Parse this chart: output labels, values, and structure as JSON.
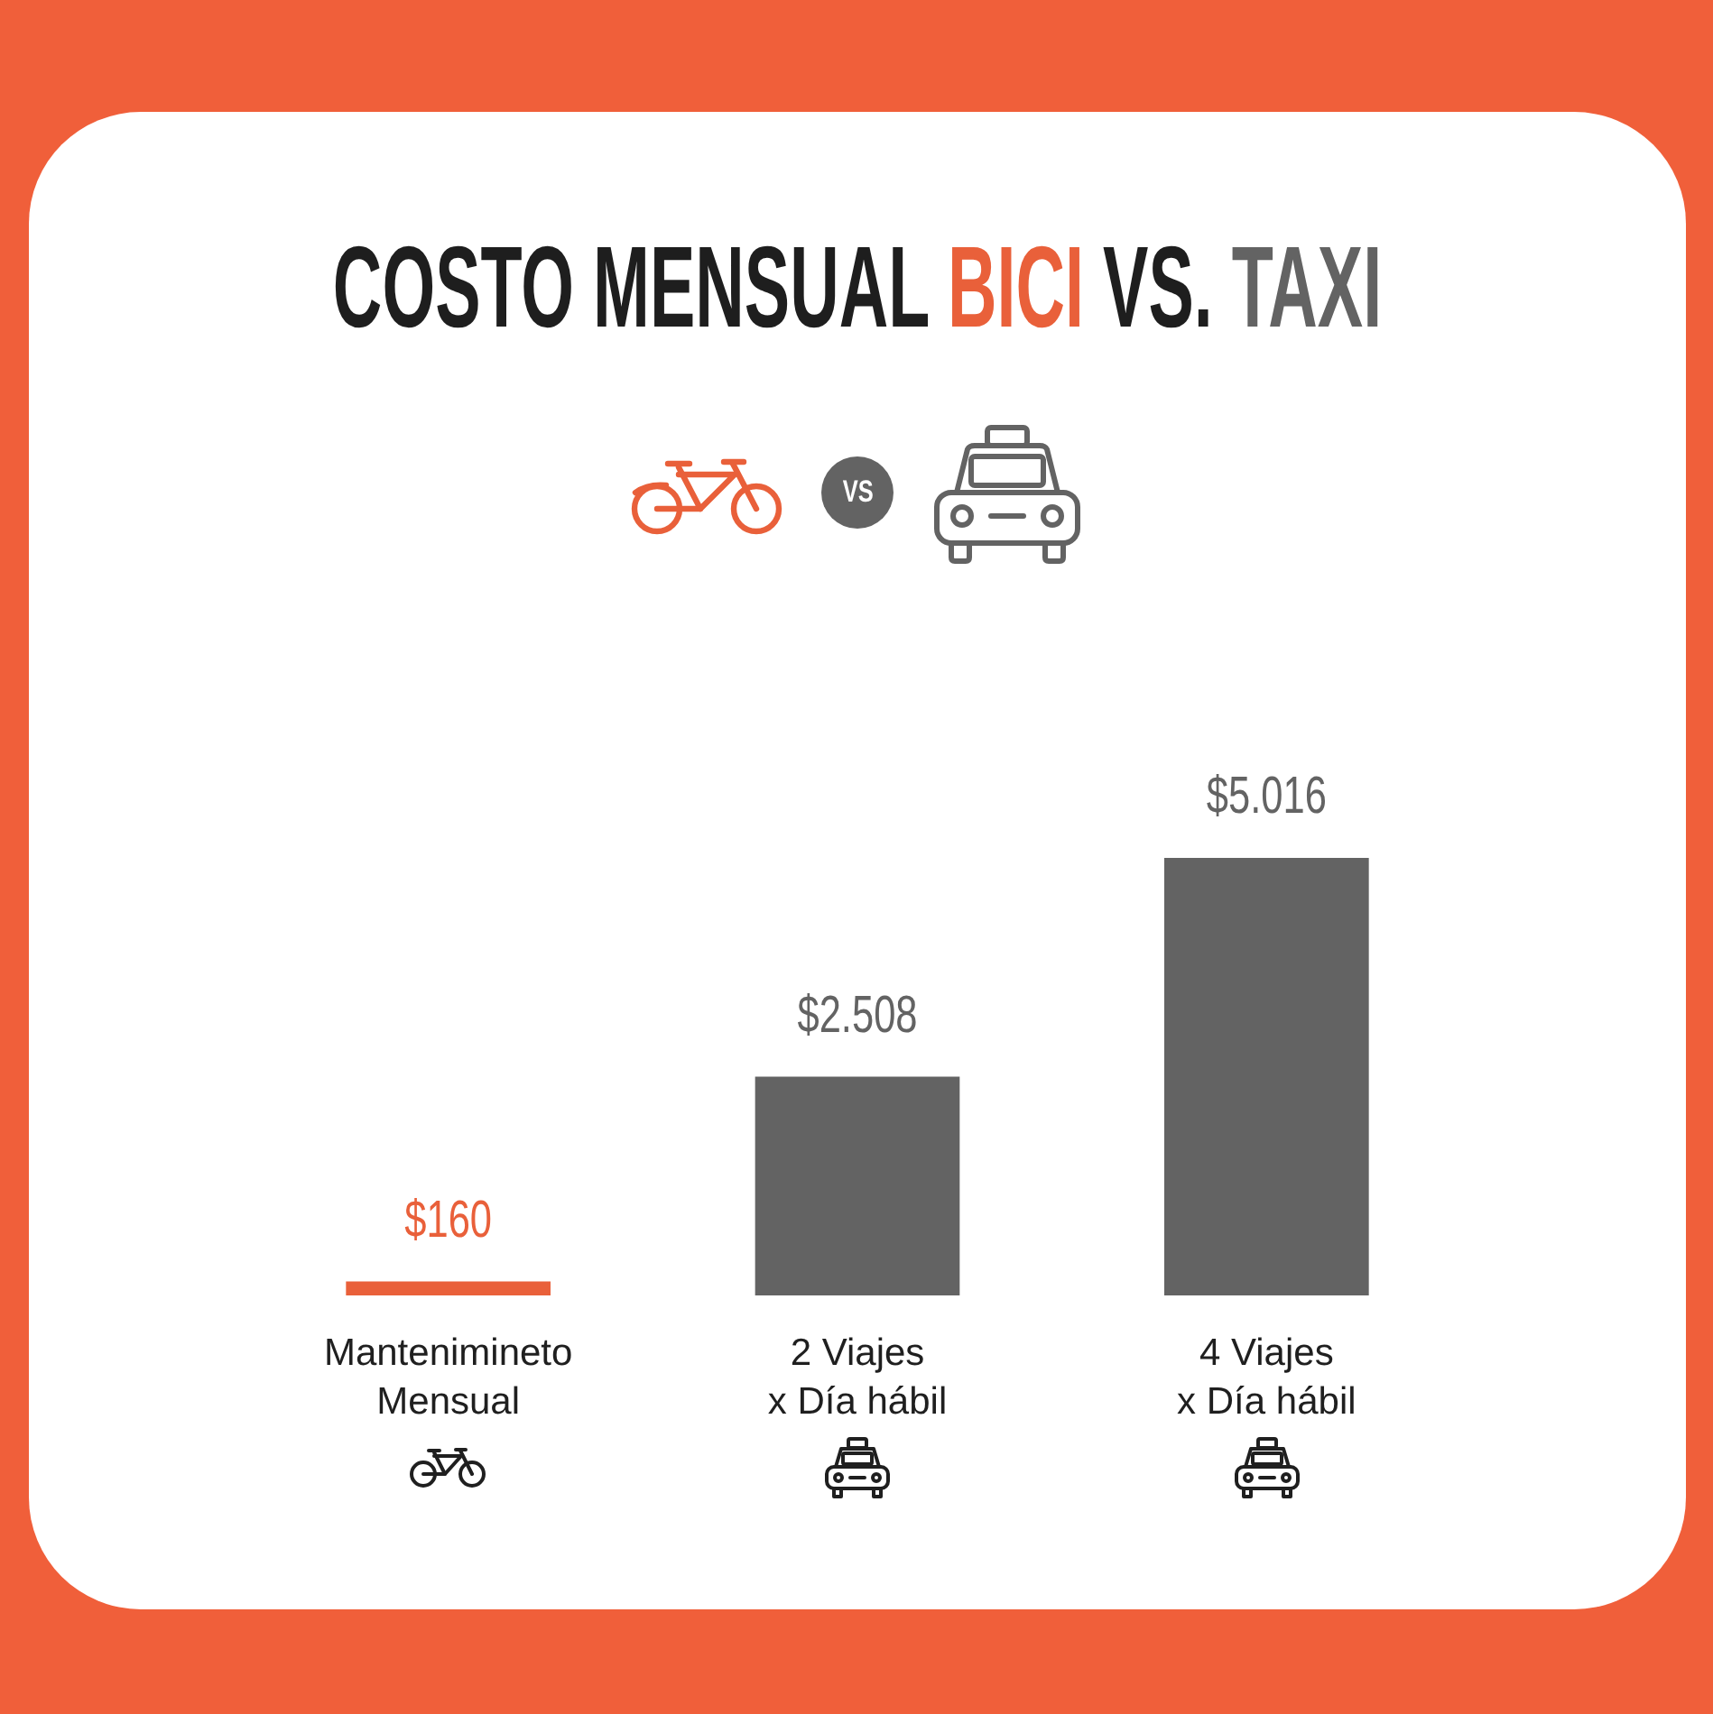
{
  "chart_data": {
    "type": "bar",
    "title": "COSTO MENSUAL BICI VS. TAXI",
    "categories": [
      "Mantenimineto\nMensual",
      "2 Viajes\nx Día hábil",
      "4 Viajes\nx Día hábil"
    ],
    "values": [
      160,
      2508,
      5016
    ],
    "colors": [
      "#e9603a",
      "#636363",
      "#636363"
    ],
    "value_labels": [
      "$160",
      "$2.508",
      "$5.016"
    ],
    "annotations": [
      "VS"
    ]
  }
}
